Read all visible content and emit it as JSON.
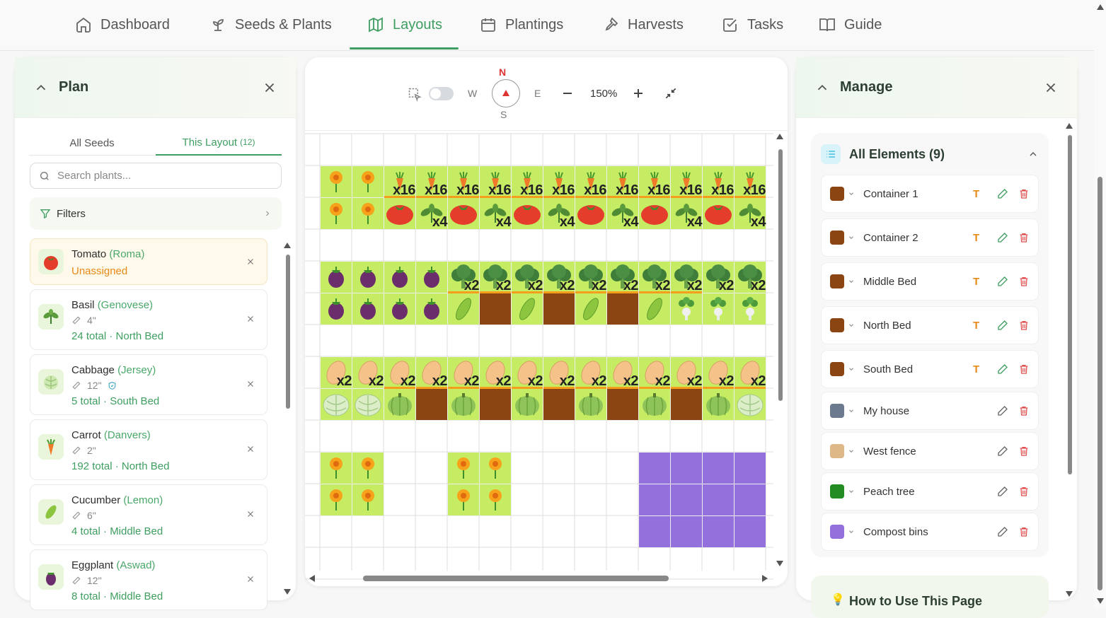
{
  "nav": {
    "tabs": [
      {
        "label": "Dashboard",
        "icon": "home-icon"
      },
      {
        "label": "Seeds & Plants",
        "icon": "sprout-icon"
      },
      {
        "label": "Layouts",
        "icon": "map-icon",
        "active": true
      },
      {
        "label": "Plantings",
        "icon": "calendar-icon"
      },
      {
        "label": "Harvests",
        "icon": "shovel-icon"
      },
      {
        "label": "Tasks",
        "icon": "checkbox-icon"
      },
      {
        "label": "Guide",
        "icon": "book-icon"
      }
    ]
  },
  "plan": {
    "title": "Plan",
    "tabs": {
      "all": "All Seeds",
      "layout": "This Layout",
      "layout_count": "(12)"
    },
    "search_placeholder": "Search plants...",
    "filters_label": "Filters",
    "plants": [
      {
        "name": "Tomato",
        "variety": "(Roma)",
        "status": "Unassigned",
        "icon": "tomato-icon"
      },
      {
        "name": "Basil",
        "variety": "(Genovese)",
        "spacing": "4\"",
        "meta": "24 total · North Bed",
        "icon": "basil-icon"
      },
      {
        "name": "Cabbage",
        "variety": "(Jersey)",
        "spacing": "12\"",
        "meta": "5 total · South Bed",
        "icon": "cabbage-icon",
        "verified": true
      },
      {
        "name": "Carrot",
        "variety": "(Danvers)",
        "spacing": "2\"",
        "meta": "192 total · North Bed",
        "icon": "carrot-icon"
      },
      {
        "name": "Cucumber",
        "variety": "(Lemon)",
        "spacing": "6\"",
        "meta": "4 total · Middle Bed",
        "icon": "cucumber-icon"
      },
      {
        "name": "Eggplant",
        "variety": "(Aswad)",
        "spacing": "12\"",
        "meta": "8 total · Middle Bed",
        "icon": "eggplant-icon"
      }
    ]
  },
  "canvas": {
    "compass": {
      "n": "N",
      "s": "S",
      "w": "W",
      "e": "E"
    },
    "zoom": "150%",
    "counts": {
      "x16": "x16",
      "x4": "x4",
      "x2": "x2"
    }
  },
  "manage": {
    "title": "Manage",
    "elements_title": "All Elements (9)",
    "elements": [
      {
        "name": "Container 1",
        "color": "#8b4513",
        "text_toggle": "T"
      },
      {
        "name": "Container 2",
        "color": "#8b4513",
        "text_toggle": "T"
      },
      {
        "name": "Middle Bed",
        "color": "#8b4513",
        "text_toggle": "T"
      },
      {
        "name": "North Bed",
        "color": "#8b4513",
        "text_toggle": "T"
      },
      {
        "name": "South Bed",
        "color": "#8b4513",
        "text_toggle": "T"
      },
      {
        "name": "My house",
        "color": "#6b7a8f"
      },
      {
        "name": "West fence",
        "color": "#deb887"
      },
      {
        "name": "Peach tree",
        "color": "#228b22"
      },
      {
        "name": "Compost bins",
        "color": "#9370db"
      }
    ],
    "howto_title": "How to Use This Page"
  },
  "colors": {
    "accent": "#3f9e61",
    "warning": "#e58a17",
    "danger": "#e05252",
    "bed": "#c5ec63",
    "soil": "#8b4513",
    "compost": "#9370db"
  }
}
